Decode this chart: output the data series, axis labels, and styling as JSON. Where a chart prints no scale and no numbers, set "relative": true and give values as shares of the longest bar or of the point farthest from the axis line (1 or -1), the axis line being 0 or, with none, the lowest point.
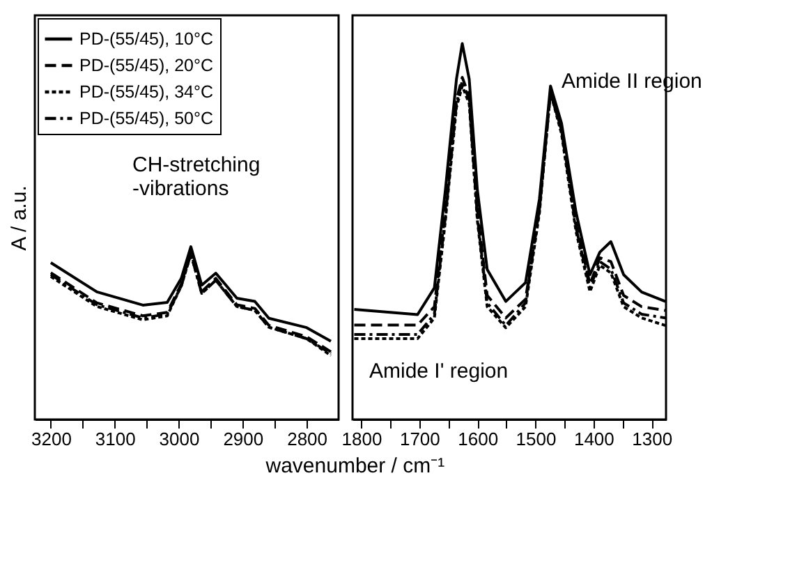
{
  "chart_data": [
    {
      "type": "line",
      "relative": true,
      "xlabel": "wavenumber / cm⁻¹",
      "ylabel": "A / a.u.",
      "legend": "top left",
      "grid": false,
      "tick_labels": "x",
      "xlim": [
        3225,
        2750
      ],
      "xticks": [
        3200,
        {
          "value": 3150,
          "label": null
        },
        3100,
        {
          "value": 3050,
          "label": null
        },
        3000,
        {
          "value": 2950,
          "label": null
        },
        2900,
        {
          "value": 2850,
          "label": null
        },
        2800
      ],
      "annotations": [
        "CH-stretching\n-vibrations"
      ],
      "x": [
        3200,
        3128,
        3056,
        3018,
        2996,
        2981,
        2964,
        2942,
        2909,
        2881,
        2859,
        2800,
        2762
      ],
      "series": [
        {
          "name": "PD-(55/45), 10°C",
          "color": "#000000",
          "line_style": "solid",
          "values": [
            0.908,
            0.739,
            0.662,
            0.678,
            0.817,
            1.0,
            0.778,
            0.847,
            0.702,
            0.684,
            0.586,
            0.532,
            0.453
          ]
        },
        {
          "name": "PD-(55/45), 20°C",
          "color": "#000000",
          "line_style": "dashed",
          "values": [
            0.85,
            0.675,
            0.6,
            0.62,
            0.784,
            0.97,
            0.74,
            0.817,
            0.664,
            0.643,
            0.545,
            0.479,
            0.392
          ]
        },
        {
          "name": "PD-(55/45), 34°C",
          "color": "#000000",
          "line_style": "dotted",
          "values": [
            0.828,
            0.654,
            0.577,
            0.6,
            0.773,
            0.959,
            0.73,
            0.806,
            0.654,
            0.632,
            0.534,
            0.468,
            0.37
          ]
        },
        {
          "name": "PD-(55/45), 50°C",
          "color": "#000000",
          "line_style": "dashdot",
          "values": [
            0.839,
            0.664,
            0.588,
            0.61,
            0.773,
            0.959,
            0.73,
            0.806,
            0.654,
            0.632,
            0.534,
            0.468,
            0.381
          ]
        }
      ]
    },
    {
      "type": "line",
      "relative": true,
      "legend": false,
      "grid": false,
      "tick_labels": "x",
      "xlim": [
        1815,
        1275
      ],
      "xticks": [
        1800,
        {
          "value": 1750,
          "label": null
        },
        1700,
        {
          "value": 1650,
          "label": null
        },
        1600,
        {
          "value": 1550,
          "label": null
        },
        1500,
        {
          "value": 1450,
          "label": null
        },
        1400,
        {
          "value": 1350,
          "label": null
        },
        1300
      ],
      "annotations": [
        "Amide II region",
        "Amide I' region"
      ],
      "x": [
        1812,
        1703,
        1674,
        1655,
        1636,
        1626,
        1614,
        1600,
        1583,
        1551,
        1517,
        1493,
        1474,
        1455,
        1430,
        1406,
        1389,
        1370,
        1348,
        1317,
        1276
      ],
      "series": [
        {
          "name": "PD-(55/45), 10°C",
          "color": "#000000",
          "line_style": "solid",
          "values": [
            0.293,
            0.279,
            0.35,
            0.611,
            0.905,
            1.0,
            0.905,
            0.611,
            0.399,
            0.314,
            0.364,
            0.587,
            0.887,
            0.788,
            0.551,
            0.385,
            0.445,
            0.473,
            0.385,
            0.339,
            0.314
          ]
        },
        {
          "name": "PD-(55/45), 20°C",
          "color": "#000000",
          "line_style": "dashed",
          "values": [
            0.251,
            0.251,
            0.3,
            0.56,
            0.85,
            0.91,
            0.86,
            0.56,
            0.33,
            0.27,
            0.32,
            0.56,
            0.87,
            0.77,
            0.52,
            0.36,
            0.43,
            0.42,
            0.33,
            0.3,
            0.29
          ]
        },
        {
          "name": "PD-(55/45), 34°C",
          "color": "#000000",
          "line_style": "dotted",
          "values": [
            0.215,
            0.215,
            0.27,
            0.53,
            0.83,
            0.887,
            0.84,
            0.53,
            0.3,
            0.244,
            0.3,
            0.55,
            0.87,
            0.76,
            0.5,
            0.34,
            0.41,
            0.39,
            0.3,
            0.27,
            0.25
          ]
        },
        {
          "name": "PD-(55/45), 50°C",
          "color": "#000000",
          "line_style": "dashdot",
          "values": [
            0.226,
            0.226,
            0.28,
            0.54,
            0.84,
            0.9,
            0.85,
            0.54,
            0.31,
            0.25,
            0.31,
            0.56,
            0.87,
            0.77,
            0.51,
            0.35,
            0.42,
            0.4,
            0.31,
            0.28,
            0.27
          ]
        }
      ]
    }
  ]
}
